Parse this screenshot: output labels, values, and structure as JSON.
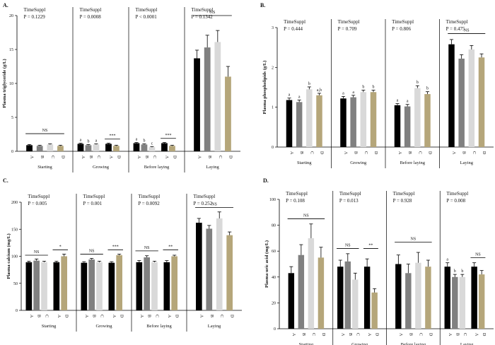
{
  "colors": {
    "A": "#000000",
    "B": "#808080",
    "C": "#d9d9d9",
    "D": "#b5a67a"
  },
  "chart_data": [
    {
      "type": "bar",
      "panel_label": "A.",
      "ylabel": "Plasma triglyceride (g/L)",
      "ylim": [
        0,
        20
      ],
      "yticks": [
        0,
        5,
        10,
        15,
        20
      ],
      "periods": [
        {
          "label": "Starting",
          "stat_title": "TimeSuppl",
          "stat_p": "P = 0.1229",
          "treatments": [
            "A",
            "B",
            "C",
            "D"
          ],
          "values": [
            0.9,
            0.8,
            1.0,
            0.8
          ],
          "errors": [
            0.1,
            0.1,
            0.1,
            0.1
          ],
          "letters": [
            "",
            "",
            "",
            ""
          ],
          "annotations": [
            {
              "text": "NS",
              "from": 0,
              "to": 3,
              "y": 2.6
            }
          ]
        },
        {
          "label": "Growing",
          "stat_title": "TimeSuppl",
          "stat_p": "P = 0.0008",
          "treatments": [
            "A",
            "B",
            "C",
            "A",
            "D"
          ],
          "values": [
            1.1,
            0.9,
            1.0,
            1.1,
            0.8
          ],
          "errors": [
            0.1,
            0.1,
            0.1,
            0.1,
            0.1
          ],
          "letters": [
            "a",
            "b",
            "a",
            "",
            ""
          ],
          "annotations": [
            {
              "text": "***",
              "from": 3,
              "to": 4,
              "y": 1.8
            }
          ]
        },
        {
          "label": "Before laying",
          "stat_title": "TimeSuppl",
          "stat_p": "P < 0.0001",
          "treatments": [
            "A",
            "B",
            "C",
            "A",
            "D"
          ],
          "values": [
            1.2,
            1.0,
            0.6,
            1.2,
            0.8
          ],
          "errors": [
            0.1,
            0.1,
            0.1,
            0.1,
            0.1
          ],
          "letters": [
            "a",
            "b",
            "c",
            "",
            ""
          ],
          "annotations": [
            {
              "text": "***",
              "from": 3,
              "to": 4,
              "y": 1.9
            }
          ]
        },
        {
          "label": "Laying",
          "stat_title": "TimeSuppl",
          "stat_p": "P = 0.1342",
          "treatments": [
            "A",
            "B",
            "C",
            "D"
          ],
          "values": [
            13.7,
            15.3,
            16.1,
            11.0
          ],
          "errors": [
            1.2,
            1.8,
            1.7,
            1.5
          ],
          "letters": [
            "",
            "",
            "",
            ""
          ],
          "annotations": [
            {
              "text": "NS",
              "from": 0,
              "to": 3,
              "y": 20.0
            }
          ]
        }
      ]
    },
    {
      "type": "bar",
      "panel_label": "B.",
      "ylabel": "Plasma phospholipids (g/L)",
      "ylim": [
        0,
        3
      ],
      "yticks": [
        0,
        1,
        2,
        3
      ],
      "periods": [
        {
          "label": "Starting",
          "stat_title": "TimeSuppl",
          "stat_p": "P = 0.444",
          "treatments": [
            "A",
            "B",
            "C",
            "D"
          ],
          "values": [
            1.18,
            1.13,
            1.45,
            1.3
          ],
          "errors": [
            0.05,
            0.05,
            0.06,
            0.05
          ],
          "letters": [
            "a",
            "a",
            "b",
            "a,b"
          ],
          "annotations": []
        },
        {
          "label": "Growing",
          "stat_title": "TimeSuppl",
          "stat_p": "P = 0.709",
          "treatments": [
            "A",
            "B",
            "C",
            "D"
          ],
          "values": [
            1.22,
            1.25,
            1.38,
            1.38
          ],
          "errors": [
            0.05,
            0.05,
            0.05,
            0.05
          ],
          "letters": [
            "a",
            "a",
            "b",
            "b"
          ],
          "annotations": []
        },
        {
          "label": "Before laying",
          "stat_title": "TimeSuppl",
          "stat_p": "P = 0.806",
          "treatments": [
            "A",
            "B",
            "C",
            "D"
          ],
          "values": [
            1.05,
            1.02,
            1.48,
            1.33
          ],
          "errors": [
            0.04,
            0.05,
            0.06,
            0.06
          ],
          "letters": [
            "a",
            "a",
            "b",
            "b"
          ],
          "annotations": []
        },
        {
          "label": "Laying",
          "stat_title": "TimeSuppl",
          "stat_p": "P = 0.475",
          "treatments": [
            "A",
            "B",
            "C",
            "D"
          ],
          "values": [
            2.58,
            2.22,
            2.45,
            2.25
          ],
          "errors": [
            0.12,
            0.1,
            0.1,
            0.09
          ],
          "letters": [
            "",
            "",
            "",
            ""
          ],
          "annotations": [
            {
              "text": "NS",
              "from": 0,
              "to": 3,
              "y": 2.85
            }
          ]
        }
      ]
    },
    {
      "type": "bar",
      "panel_label": "C.",
      "ylabel": "Plasma calcium (mg/L)",
      "ylim": [
        0,
        200
      ],
      "yticks": [
        0,
        50,
        100,
        150,
        200
      ],
      "periods": [
        {
          "label": "Starting",
          "stat_title": "TimeSuppl",
          "stat_p": "P = 0.005",
          "treatments": [
            "A",
            "B",
            "C",
            "A",
            "D"
          ],
          "values": [
            89,
            92,
            89,
            89,
            100
          ],
          "errors": [
            2,
            3,
            2,
            2,
            4
          ],
          "letters": [
            "",
            "",
            "",
            "",
            ""
          ],
          "annotations": [
            {
              "text": "NS",
              "from": 0,
              "to": 2,
              "y": 102
            },
            {
              "text": "*",
              "from": 3,
              "to": 4,
              "y": 112
            }
          ]
        },
        {
          "label": "Growing",
          "stat_title": "TimeSuppl",
          "stat_p": "P = 0.001",
          "treatments": [
            "A",
            "B",
            "C",
            "A",
            "D"
          ],
          "values": [
            88,
            94,
            89,
            88,
            102
          ],
          "errors": [
            2,
            2,
            2,
            2,
            2
          ],
          "letters": [
            "",
            "",
            "",
            "",
            ""
          ],
          "annotations": [
            {
              "text": "NS",
              "from": 0,
              "to": 2,
              "y": 104
            },
            {
              "text": "***",
              "from": 3,
              "to": 4,
              "y": 112
            }
          ]
        },
        {
          "label": "Before laying",
          "stat_title": "TimeSuppl",
          "stat_p": "P = 0.0092",
          "treatments": [
            "A",
            "B",
            "C",
            "A",
            "D"
          ],
          "values": [
            89,
            98,
            89,
            89,
            100
          ],
          "errors": [
            3,
            3,
            2,
            3,
            2
          ],
          "letters": [
            "",
            "",
            "",
            "",
            ""
          ],
          "annotations": [
            {
              "text": "NS",
              "from": 0,
              "to": 2,
              "y": 110
            },
            {
              "text": "**",
              "from": 3,
              "to": 4,
              "y": 112
            }
          ]
        },
        {
          "label": "Laying",
          "stat_title": "TimeSuppl",
          "stat_p": "P = 0.252",
          "treatments": [
            "A",
            "B",
            "C",
            "D"
          ],
          "values": [
            162,
            151,
            170,
            139
          ],
          "errors": [
            8,
            6,
            12,
            6
          ],
          "letters": [
            "",
            "",
            "",
            ""
          ],
          "annotations": [
            {
              "text": "NS",
              "from": 0,
              "to": 3,
              "y": 190
            }
          ]
        }
      ]
    },
    {
      "type": "bar",
      "panel_label": "D.",
      "ylabel": "Plasma uric acid (mg/L)",
      "ylim": [
        0,
        100
      ],
      "yticks": [
        0,
        20,
        40,
        60,
        80,
        100
      ],
      "periods": [
        {
          "label": "Starting",
          "stat_title": "TimeSuppl",
          "stat_p": "P = 0.108",
          "treatments": [
            "A",
            "B",
            "C",
            "D"
          ],
          "values": [
            43,
            57,
            70,
            55
          ],
          "errors": [
            5,
            8,
            11,
            8
          ],
          "letters": [
            "",
            "",
            "",
            ""
          ],
          "annotations": [
            {
              "text": "NS",
              "from": 0,
              "to": 3,
              "y": 85
            }
          ]
        },
        {
          "label": "Growing",
          "stat_title": "TimeSuppl",
          "stat_p": "P = 0.013",
          "treatments": [
            "A",
            "B",
            "C",
            "A",
            "D"
          ],
          "values": [
            48,
            52,
            38,
            48,
            28
          ],
          "errors": [
            5,
            6,
            5,
            6,
            3
          ],
          "letters": [
            "",
            "",
            "",
            "",
            ""
          ],
          "annotations": [
            {
              "text": "NS",
              "from": 0,
              "to": 2,
              "y": 62
            },
            {
              "text": "**",
              "from": 3,
              "to": 4,
              "y": 62
            }
          ]
        },
        {
          "label": "Before laying",
          "stat_title": "TimeSuppl",
          "stat_p": "P = 0.928",
          "treatments": [
            "A",
            "B",
            "C",
            "D"
          ],
          "values": [
            50,
            43,
            51,
            48
          ],
          "errors": [
            7,
            7,
            8,
            5
          ],
          "letters": [
            "",
            "",
            "",
            ""
          ],
          "annotations": [
            {
              "text": "NS",
              "from": 0,
              "to": 3,
              "y": 67
            }
          ]
        },
        {
          "label": "Laying",
          "stat_title": "TimeSuppl",
          "stat_p": "P = 0.008",
          "treatments": [
            "A",
            "B",
            "C",
            "A",
            "D"
          ],
          "values": [
            48,
            40,
            40,
            48,
            42
          ],
          "errors": [
            3,
            2,
            2,
            3,
            3
          ],
          "letters": [
            "a",
            "b",
            "b",
            "",
            ""
          ],
          "annotations": [
            {
              "text": "NS",
              "from": 3,
              "to": 4,
              "y": 55
            }
          ]
        }
      ]
    }
  ]
}
